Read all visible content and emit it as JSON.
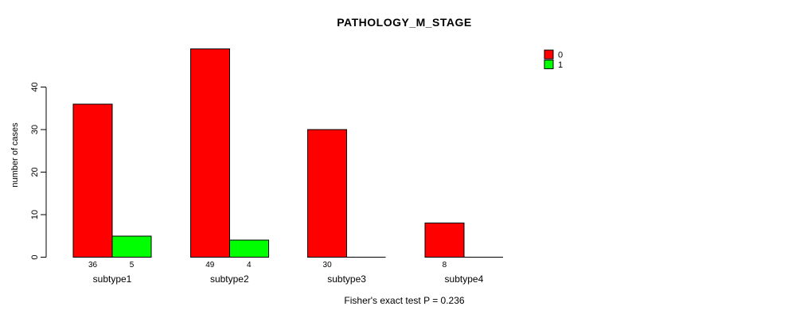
{
  "chart_data": {
    "type": "bar",
    "title": "PATHOLOGY_M_STAGE",
    "ylabel": "number of cases",
    "xlabel": "",
    "categories": [
      "subtype1",
      "subtype2",
      "subtype3",
      "subtype4"
    ],
    "series": [
      {
        "name": "0",
        "color": "#ff0000",
        "values": [
          36,
          49,
          30,
          8
        ]
      },
      {
        "name": "1",
        "color": "#00ff00",
        "values": [
          5,
          4,
          0,
          0
        ]
      }
    ],
    "yticks": [
      0,
      10,
      20,
      30,
      40
    ],
    "ylim": [
      0,
      49
    ],
    "grid": false,
    "legend_position": "top-right",
    "bar_value_labels": [
      [
        "36",
        "49",
        "30",
        "8"
      ],
      [
        "5",
        "4",
        "",
        ""
      ]
    ],
    "footer": "Fisher's exact test P = 0.236"
  },
  "colors": {
    "background": "#ffffff",
    "axis": "#000000",
    "text": "#000000",
    "bar_border": "#000000",
    "series_0": "#ff0000",
    "series_1": "#00ff00"
  }
}
